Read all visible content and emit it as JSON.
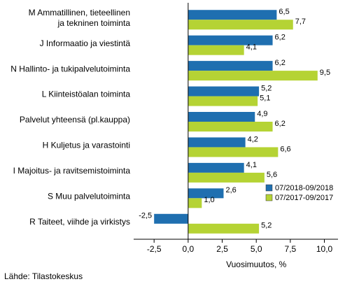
{
  "chart_data": {
    "type": "bar",
    "orientation": "horizontal",
    "categories": [
      "M Ammatillinen, tieteellinen\nja tekninen toiminta",
      "J Informaatio ja viestintä",
      "N Hallinto- ja tukipalvelutoiminta",
      "L Kiinteistöalan toiminta",
      "Palvelut yhteensä (pl.kauppa)",
      "H Kuljetus ja varastointi",
      "I Majoitus- ja ravitsemistoiminta",
      "S Muu palvelutoiminta",
      "R Taiteet, viihde ja virkistys"
    ],
    "series": [
      {
        "name": "07/2018-09/2018",
        "color": "#1f6fb0",
        "values": [
          6.5,
          6.2,
          6.2,
          5.2,
          4.9,
          4.2,
          4.1,
          2.6,
          -2.5
        ],
        "labels": [
          "6,5",
          "6,2",
          "6,2",
          "5,2",
          "4,9",
          "4,2",
          "4,1",
          "2,6",
          "-2,5"
        ]
      },
      {
        "name": "07/2017-09/2017",
        "color": "#b5d334",
        "values": [
          7.7,
          4.1,
          9.5,
          5.1,
          6.2,
          6.6,
          5.6,
          1.0,
          5.2
        ],
        "labels": [
          "7,7",
          "4,1",
          "9,5",
          "5,1",
          "6,2",
          "6,6",
          "5,6",
          "1,0",
          "5,2"
        ]
      }
    ],
    "xlim": [
      -4,
      11
    ],
    "ticks": [
      -2.5,
      0,
      2.5,
      5,
      7.5,
      10
    ],
    "tick_labels": [
      "-2,5",
      "0,0",
      "2,5",
      "5,0",
      "7,5",
      "10,0"
    ],
    "xlabel": "Vuosimuutos, %",
    "legend_position": "right-bottom",
    "grid": false
  },
  "source": "Lähde: Tilastokeskus"
}
